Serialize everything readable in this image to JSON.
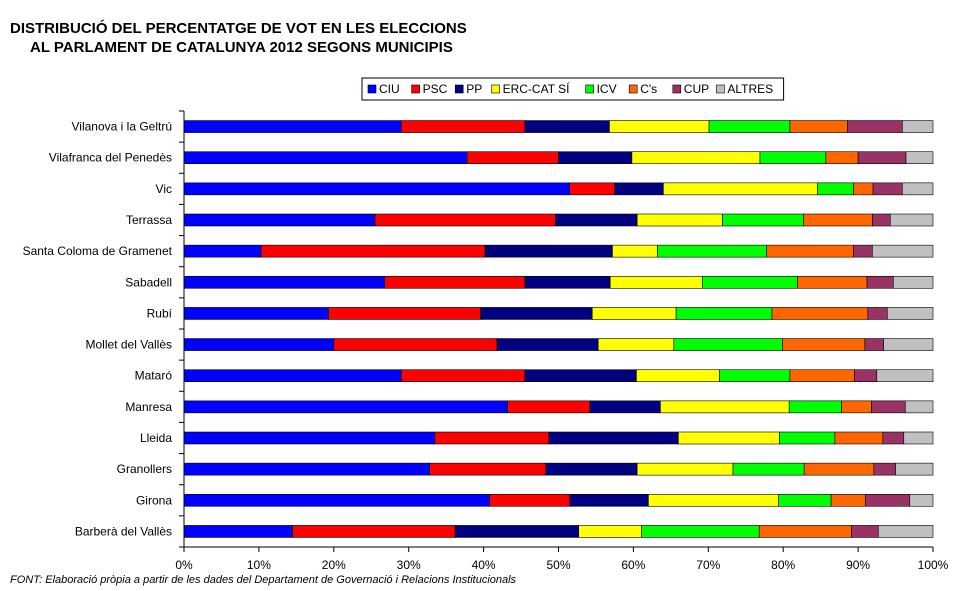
{
  "chart_data": {
    "type": "bar",
    "orientation": "horizontal",
    "stacked": true,
    "title": "DISTRIBUCIÓ DEL PERCENTATGE DE VOT EN LES ELECCIONS",
    "subtitle": "AL PARLAMENT DE CATALUNYA 2012 SEGONS MUNICIPIS",
    "source": "FONT: Elaboració pròpia a partir de les dades del Departament de Governació i Relacions Institucionals",
    "xlim": [
      0,
      100
    ],
    "xticks": [
      "0%",
      "10%",
      "20%",
      "30%",
      "40%",
      "50%",
      "60%",
      "70%",
      "80%",
      "90%",
      "100%"
    ],
    "grid": false,
    "legend_position": "top-right",
    "categories": [
      "Vilanova i la Geltrú",
      "Vilafranca del Penedès",
      "Vic",
      "Terrassa",
      "Santa Coloma de Gramenet",
      "Sabadell",
      "Rubí",
      "Mollet del Vallès",
      "Mataró",
      "Manresa",
      "Lleida",
      "Granollers",
      "Girona",
      "Barberà del Vallès"
    ],
    "series": [
      {
        "name": "CIU",
        "color": "#0000FF",
        "values": [
          29.0,
          37.8,
          51.5,
          25.5,
          10.3,
          26.8,
          19.3,
          20.0,
          29.0,
          43.2,
          33.5,
          32.8,
          40.8,
          14.5
        ]
      },
      {
        "name": "PSC",
        "color": "#FF0000",
        "values": [
          16.5,
          12.2,
          6.0,
          24.1,
          29.9,
          18.7,
          20.3,
          21.8,
          16.5,
          11.0,
          15.2,
          15.5,
          10.7,
          21.7
        ]
      },
      {
        "name": "PP",
        "color": "#000080",
        "values": [
          11.3,
          9.8,
          6.5,
          10.9,
          17.0,
          11.4,
          14.9,
          13.5,
          14.9,
          9.4,
          17.3,
          12.2,
          10.5,
          16.5
        ]
      },
      {
        "name": "ERC-CAT SÍ",
        "color": "#FFFF00",
        "values": [
          13.3,
          17.1,
          20.6,
          11.4,
          6.0,
          12.3,
          11.2,
          10.1,
          11.1,
          17.2,
          13.5,
          12.8,
          17.4,
          8.4
        ]
      },
      {
        "name": "ICV",
        "color": "#00FF00",
        "values": [
          10.8,
          8.8,
          4.8,
          10.8,
          14.6,
          12.7,
          12.8,
          14.5,
          9.4,
          7.0,
          7.4,
          9.5,
          7.0,
          15.7
        ]
      },
      {
        "name": "C's",
        "color": "#FF6600",
        "values": [
          7.7,
          4.3,
          2.6,
          9.2,
          11.6,
          9.3,
          12.8,
          11.0,
          8.6,
          4.0,
          6.4,
          9.3,
          4.6,
          12.3
        ]
      },
      {
        "name": "CUP",
        "color": "#993366",
        "values": [
          7.3,
          6.4,
          3.9,
          2.4,
          2.5,
          3.5,
          2.6,
          2.5,
          3.0,
          4.5,
          2.8,
          2.9,
          5.9,
          3.6
        ]
      },
      {
        "name": "ALTRES",
        "color": "#C0C0C0",
        "values": [
          4.1,
          3.6,
          4.1,
          5.7,
          8.1,
          5.3,
          6.1,
          6.6,
          7.5,
          3.7,
          3.9,
          5.0,
          3.1,
          7.3
        ]
      }
    ]
  }
}
